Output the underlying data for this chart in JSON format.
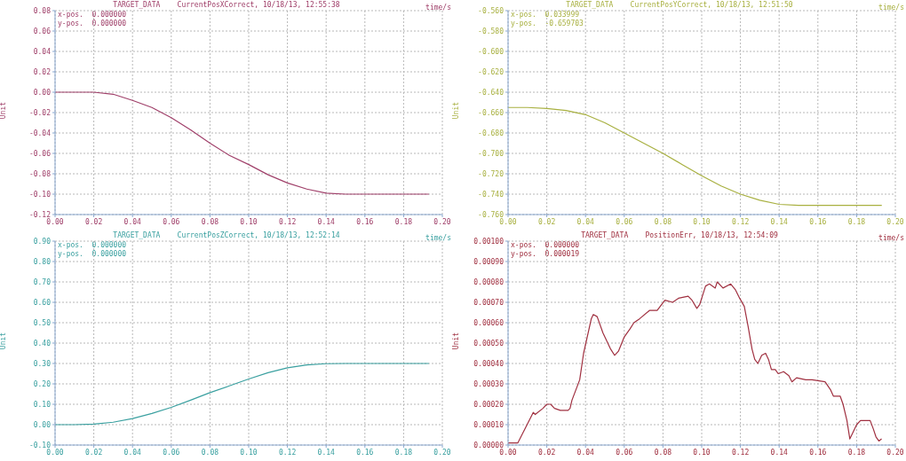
{
  "chart_data": [
    {
      "type": "line",
      "title": "TARGET_DATA    CurrentPosXCorrect, 10/18/13, 12:55:38",
      "xlabel": "time/s",
      "ylabel": "Unit",
      "color": "#a0406a",
      "grid": true,
      "annotations": [
        "x-pos.  0.000000",
        "y-pos.  0.000000"
      ],
      "x": [
        0,
        0.01,
        0.02,
        0.03,
        0.04,
        0.05,
        0.06,
        0.07,
        0.08,
        0.09,
        0.1,
        0.11,
        0.12,
        0.13,
        0.14,
        0.15,
        0.17,
        0.193
      ],
      "values": [
        0,
        0,
        0,
        -0.002,
        -0.008,
        -0.015,
        -0.025,
        -0.037,
        -0.05,
        -0.062,
        -0.071,
        -0.081,
        -0.089,
        -0.095,
        -0.099,
        -0.1,
        -0.1,
        -0.1
      ],
      "xlim": [
        0,
        0.2
      ],
      "xticks": [
        {
          "value": 0,
          "label": "0.00"
        },
        {
          "value": 0.02,
          "label": "0.02"
        },
        {
          "value": 0.04,
          "label": "0.04"
        },
        {
          "value": 0.06,
          "label": "0.06"
        },
        {
          "value": 0.08,
          "label": "0.08"
        },
        {
          "value": 0.1,
          "label": "0.10"
        },
        {
          "value": 0.12,
          "label": "0.12"
        },
        {
          "value": 0.14,
          "label": "0.14"
        },
        {
          "value": 0.16,
          "label": "0.16"
        },
        {
          "value": 0.18,
          "label": "0.18"
        },
        {
          "value": 0.2,
          "label": "0.20"
        }
      ],
      "ylim": [
        -0.12,
        0.08
      ],
      "yticks": [
        {
          "value": -0.12,
          "label": "-0.12"
        },
        {
          "value": -0.1,
          "label": "-0.10"
        },
        {
          "value": -0.08,
          "label": "-0.08"
        },
        {
          "value": -0.06,
          "label": "-0.06"
        },
        {
          "value": -0.04,
          "label": "-0.04"
        },
        {
          "value": -0.02,
          "label": "-0.02"
        },
        {
          "value": 0,
          "label": "0.00"
        },
        {
          "value": 0.02,
          "label": "0.02"
        },
        {
          "value": 0.04,
          "label": "0.04"
        },
        {
          "value": 0.06,
          "label": "0.06"
        },
        {
          "value": 0.08,
          "label": "0.08"
        }
      ]
    },
    {
      "type": "line",
      "title": "TARGET_DATA    CurrentPosYCorrect, 10/18/13, 12:51:50",
      "xlabel": "time/s",
      "ylabel": "Unit",
      "color": "#a8b040",
      "grid": true,
      "annotations": [
        "x-pos.  0.033999",
        "y-pos.  -0.659703"
      ],
      "x": [
        0,
        0.01,
        0.02,
        0.03,
        0.04,
        0.05,
        0.06,
        0.07,
        0.08,
        0.09,
        0.1,
        0.11,
        0.12,
        0.13,
        0.14,
        0.15,
        0.17,
        0.193
      ],
      "values": [
        -0.655,
        -0.655,
        -0.656,
        -0.658,
        -0.662,
        -0.67,
        -0.68,
        -0.69,
        -0.7,
        -0.711,
        -0.722,
        -0.732,
        -0.74,
        -0.746,
        -0.75,
        -0.751,
        -0.751,
        -0.751
      ],
      "xlim": [
        0,
        0.2
      ],
      "xticks": [
        {
          "value": 0,
          "label": "0.00"
        },
        {
          "value": 0.02,
          "label": "0.02"
        },
        {
          "value": 0.04,
          "label": "0.04"
        },
        {
          "value": 0.06,
          "label": "0.06"
        },
        {
          "value": 0.08,
          "label": "0.08"
        },
        {
          "value": 0.1,
          "label": "0.10"
        },
        {
          "value": 0.12,
          "label": "0.12"
        },
        {
          "value": 0.14,
          "label": "0.14"
        },
        {
          "value": 0.16,
          "label": "0.16"
        },
        {
          "value": 0.18,
          "label": "0.18"
        },
        {
          "value": 0.2,
          "label": "0.20"
        }
      ],
      "ylim": [
        -0.76,
        -0.56
      ],
      "yticks": [
        {
          "value": -0.76,
          "label": "-0.760"
        },
        {
          "value": -0.74,
          "label": "-0.740"
        },
        {
          "value": -0.72,
          "label": "-0.720"
        },
        {
          "value": -0.7,
          "label": "-0.700"
        },
        {
          "value": -0.68,
          "label": "-0.680"
        },
        {
          "value": -0.66,
          "label": "-0.660"
        },
        {
          "value": -0.64,
          "label": "-0.640"
        },
        {
          "value": -0.62,
          "label": "-0.620"
        },
        {
          "value": -0.6,
          "label": "-0.600"
        },
        {
          "value": -0.58,
          "label": "-0.580"
        },
        {
          "value": -0.56,
          "label": "-0.560"
        }
      ]
    },
    {
      "type": "line",
      "title": "TARGET_DATA    CurrentPosZCorrect, 10/18/13, 12:52:14",
      "xlabel": "time/s",
      "ylabel": "Unit",
      "color": "#3aa0a0",
      "grid": true,
      "annotations": [
        "x-pos.  0.000000",
        "y-pos.  0.000000"
      ],
      "x": [
        0,
        0.01,
        0.02,
        0.03,
        0.04,
        0.05,
        0.06,
        0.07,
        0.08,
        0.09,
        0.1,
        0.11,
        0.12,
        0.13,
        0.14,
        0.15,
        0.17,
        0.193
      ],
      "values": [
        0,
        0,
        0.003,
        0.012,
        0.03,
        0.055,
        0.085,
        0.12,
        0.157,
        0.19,
        0.224,
        0.255,
        0.279,
        0.293,
        0.299,
        0.3,
        0.3,
        0.3
      ],
      "xlim": [
        0,
        0.2
      ],
      "xticks": [
        {
          "value": 0,
          "label": "0.00"
        },
        {
          "value": 0.02,
          "label": "0.02"
        },
        {
          "value": 0.04,
          "label": "0.04"
        },
        {
          "value": 0.06,
          "label": "0.06"
        },
        {
          "value": 0.08,
          "label": "0.08"
        },
        {
          "value": 0.1,
          "label": "0.10"
        },
        {
          "value": 0.12,
          "label": "0.12"
        },
        {
          "value": 0.14,
          "label": "0.14"
        },
        {
          "value": 0.16,
          "label": "0.16"
        },
        {
          "value": 0.18,
          "label": "0.18"
        },
        {
          "value": 0.2,
          "label": "0.20"
        }
      ],
      "ylim": [
        -0.1,
        0.9
      ],
      "yticks": [
        {
          "value": -0.1,
          "label": "-0.10"
        },
        {
          "value": 0,
          "label": "0.00"
        },
        {
          "value": 0.1,
          "label": "0.10"
        },
        {
          "value": 0.2,
          "label": "0.20"
        },
        {
          "value": 0.3,
          "label": "0.30"
        },
        {
          "value": 0.4,
          "label": "0.40"
        },
        {
          "value": 0.5,
          "label": "0.50"
        },
        {
          "value": 0.6,
          "label": "0.60"
        },
        {
          "value": 0.7,
          "label": "0.70"
        },
        {
          "value": 0.8,
          "label": "0.80"
        },
        {
          "value": 0.9,
          "label": "0.90"
        }
      ]
    },
    {
      "type": "line",
      "title": "TARGET_DATA    PositionErr, 10/18/13, 12:54:09",
      "xlabel": "time/s",
      "ylabel": "Unit",
      "color": "#a03040",
      "grid": true,
      "annotations": [
        "x-pos.  0.000000",
        "y-pos.  0.000019"
      ],
      "x": [
        0,
        0.005,
        0.013,
        0.014,
        0.018,
        0.02,
        0.022,
        0.024,
        0.027,
        0.031,
        0.032,
        0.033,
        0.037,
        0.039,
        0.043,
        0.044,
        0.046,
        0.049,
        0.053,
        0.055,
        0.057,
        0.06,
        0.063,
        0.065,
        0.068,
        0.073,
        0.077,
        0.081,
        0.085,
        0.088,
        0.093,
        0.095,
        0.0975,
        0.099,
        0.1,
        0.102,
        0.104,
        0.107,
        0.108,
        0.111,
        0.115,
        0.1175,
        0.1196,
        0.122,
        0.124,
        0.126,
        0.1274,
        0.129,
        0.131,
        0.133,
        0.1345,
        0.136,
        0.138,
        0.1395,
        0.1423,
        0.145,
        0.1466,
        0.149,
        0.1537,
        0.157,
        0.1637,
        0.1666,
        0.168,
        0.1715,
        0.173,
        0.175,
        0.1765,
        0.178,
        0.18,
        0.182,
        0.187,
        0.1886,
        0.19,
        0.1915,
        0.1929
      ],
      "values": [
        1e-05,
        1e-05,
        0.00016,
        0.00015,
        0.00018,
        0.0002,
        0.0002,
        0.00018,
        0.00017,
        0.00017,
        0.00018,
        0.00022,
        0.00032,
        0.00045,
        0.00062,
        0.00064,
        0.00063,
        0.00055,
        0.00047,
        0.00044,
        0.00046,
        0.00053,
        0.00057,
        0.0006,
        0.00062,
        0.00066,
        0.00066,
        0.00071,
        0.0007,
        0.00072,
        0.00073,
        0.00071,
        0.00067,
        0.00069,
        0.00072,
        0.00078,
        0.00079,
        0.00077,
        0.0008,
        0.00077,
        0.00079,
        0.00076,
        0.00072,
        0.00068,
        0.00058,
        0.00047,
        0.00042,
        0.0004,
        0.00044,
        0.00045,
        0.00042,
        0.00037,
        0.00037,
        0.00035,
        0.00036,
        0.00034,
        0.00031,
        0.00033,
        0.00032,
        0.00032,
        0.00031,
        0.00027,
        0.00024,
        0.00024,
        0.0002,
        0.00012,
        3e-05,
        6e-05,
        0.0001,
        0.00012,
        0.00012,
        8e-05,
        4e-05,
        2e-05,
        3e-05
      ],
      "xlim": [
        0,
        0.2
      ],
      "xticks": [
        {
          "value": 0,
          "label": "0.00"
        },
        {
          "value": 0.02,
          "label": "0.02"
        },
        {
          "value": 0.04,
          "label": "0.04"
        },
        {
          "value": 0.06,
          "label": "0.06"
        },
        {
          "value": 0.08,
          "label": "0.08"
        },
        {
          "value": 0.1,
          "label": "0.10"
        },
        {
          "value": 0.12,
          "label": "0.12"
        },
        {
          "value": 0.14,
          "label": "0.14"
        },
        {
          "value": 0.16,
          "label": "0.16"
        },
        {
          "value": 0.18,
          "label": "0.18"
        },
        {
          "value": 0.2,
          "label": "0.20"
        }
      ],
      "ylim": [
        0,
        0.001
      ],
      "yticks": [
        {
          "value": 0,
          "label": "0.00000"
        },
        {
          "value": 0.0001,
          "label": "0.00010"
        },
        {
          "value": 0.0002,
          "label": "0.00020"
        },
        {
          "value": 0.0003,
          "label": "0.00030"
        },
        {
          "value": 0.0004,
          "label": "0.00040"
        },
        {
          "value": 0.0005,
          "label": "0.00050"
        },
        {
          "value": 0.0006,
          "label": "0.00060"
        },
        {
          "value": 0.0007,
          "label": "0.00070"
        },
        {
          "value": 0.0008,
          "label": "0.00080"
        },
        {
          "value": 0.0009,
          "label": "0.00090"
        },
        {
          "value": 0.001,
          "label": "0.00100"
        }
      ]
    }
  ]
}
